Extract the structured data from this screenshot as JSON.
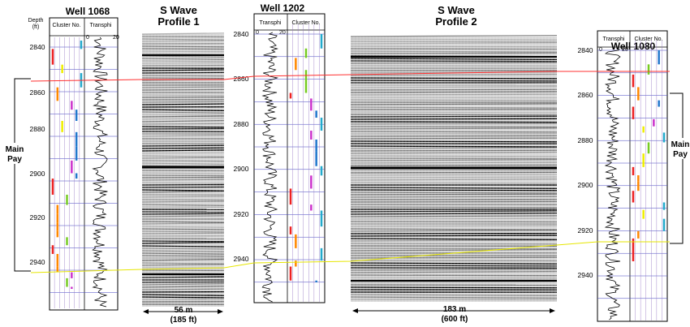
{
  "wells": [
    {
      "id": "w1068",
      "title": "Well 1068",
      "depth_label_1": "Depth",
      "depth_label_2": "(ft)",
      "cluster_label": "Cluster No.",
      "transphi_label": "Transphi",
      "cluster_scale": [
        "0",
        "7"
      ],
      "transphi_scale": [
        "0",
        "20"
      ],
      "depths": [
        "2840",
        "2860",
        "2880",
        "2900",
        "2920",
        "2940"
      ]
    },
    {
      "id": "w1202",
      "title": "Well 1202",
      "transphi_label": "Transphi",
      "cluster_label": "Cluster No.",
      "transphi_scale": [
        "0",
        "20"
      ],
      "cluster_scale": [
        "0",
        "7"
      ],
      "depths": [
        "2840",
        "2860",
        "2880",
        "2900",
        "2920",
        "2940"
      ]
    },
    {
      "id": "w1080",
      "title": "Well 1080",
      "transphi_label": "Transphi",
      "cluster_label": "Cluster No.",
      "transphi_scale": [
        "0",
        "20"
      ],
      "cluster_scale": [
        "0",
        "7"
      ],
      "depths": [
        "2840",
        "2860",
        "2880",
        "2900",
        "2920",
        "2940"
      ]
    }
  ],
  "profiles": [
    {
      "id": "p1",
      "title_1": "S Wave",
      "title_2": "Profile 1",
      "dim_1": "56 m",
      "dim_2": "(185 ft)"
    },
    {
      "id": "p2",
      "title_1": "S Wave",
      "title_2": "Profile 2",
      "dim_1": "183 m",
      "dim_2": "(600 ft)"
    }
  ],
  "main_pay_left": {
    "line_1": "Main",
    "line_2": "Pay"
  },
  "main_pay_right": {
    "line_1": "Main",
    "line_2": "Pay"
  },
  "colors": {
    "marker_top": "#ff3030",
    "marker_bottom": "#eeee00",
    "grid": "#4040c0",
    "cluster_colors": [
      "#ee2222",
      "#ff8800",
      "#eeee00",
      "#77cc22",
      "#cc33cc",
      "#2277cc",
      "#22aacc"
    ]
  }
}
